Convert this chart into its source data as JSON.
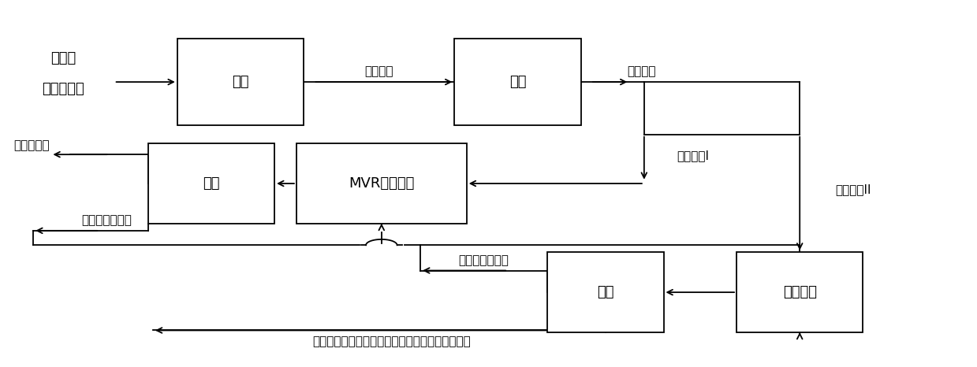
{
  "background_color": "#ffffff",
  "lw": 1.3,
  "font_size": 13,
  "label_font_size": 11,
  "boxes": {
    "acid": [
      0.245,
      0.78,
      0.13,
      0.24
    ],
    "impurity": [
      0.53,
      0.78,
      0.13,
      0.24
    ],
    "centrifuge1": [
      0.215,
      0.5,
      0.13,
      0.22
    ],
    "mvr": [
      0.39,
      0.5,
      0.175,
      0.22
    ],
    "centrifuge2": [
      0.62,
      0.2,
      0.12,
      0.22
    ],
    "cooling": [
      0.82,
      0.2,
      0.13,
      0.22
    ]
  },
  "box_labels": {
    "acid": "酸浸",
    "impurity": "除杂",
    "centrifuge1": "离心",
    "mvr": "MVR蕃发结晶",
    "centrifuge2": "离心",
    "cooling": "冷却结晶"
  },
  "input_line1": "锂电池",
  "input_line2": "废正极材料",
  "label_sol1": "第一溶液",
  "label_sol2": "第二溶液",
  "label_sol2I": "第二溶液I",
  "label_sol2II": "第二溶液II",
  "label_li_sulfate": "硫酸锂晶体",
  "label_first_water": "第一离心母液水",
  "label_second_water": "第二离心母液水",
  "label_product": "鈥鈢硫酸盐共晶体、鈥硫酸盐晶体或鈢硫酸盐晶体"
}
